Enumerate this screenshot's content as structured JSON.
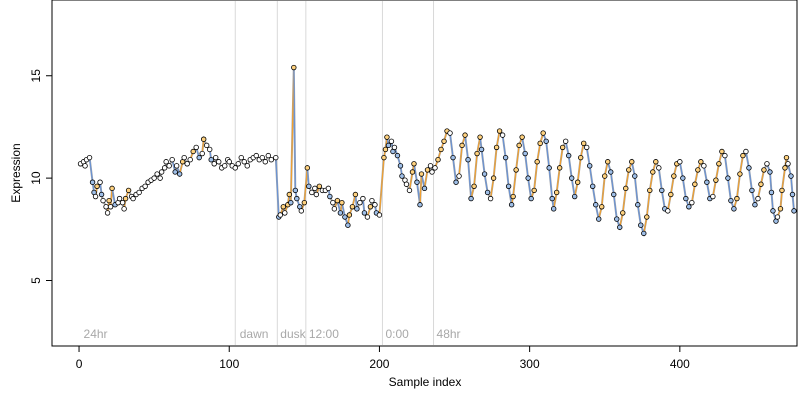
{
  "chart_data": {
    "type": "scatter",
    "xlabel": "Sample index",
    "ylabel": "Expression",
    "xlim": [
      -18,
      478
    ],
    "ylim": [
      1.8,
      18.7
    ],
    "x_ticks": [
      0,
      100,
      200,
      300,
      400
    ],
    "y_ticks": [
      5,
      10,
      15
    ],
    "grid": false,
    "phase_boundaries": [
      104,
      132,
      151,
      202,
      236
    ],
    "phase_labels": [
      {
        "text": "24hr",
        "x": 3
      },
      {
        "text": "dawn",
        "x": 107
      },
      {
        "text": "dusk",
        "x": 134
      },
      {
        "text": "12:00",
        "x": 153
      },
      {
        "text": "0:00",
        "x": 204
      },
      {
        "text": "48hr",
        "x": 238
      }
    ],
    "series": [
      {
        "name": "",
        "values": [
          [
            1,
            10.7
          ],
          [
            3,
            10.8
          ],
          [
            4,
            10.6
          ],
          [
            5,
            10.9
          ],
          [
            7,
            11.0
          ],
          [
            9,
            9.8
          ],
          [
            10,
            9.3
          ],
          [
            11,
            9.1
          ],
          [
            12,
            9.6
          ],
          [
            14,
            9.8
          ],
          [
            15,
            9.2
          ],
          [
            16,
            8.9
          ],
          [
            18,
            8.6
          ],
          [
            19,
            8.3
          ],
          [
            20,
            8.9
          ],
          [
            21,
            8.6
          ],
          [
            22,
            9.5
          ],
          [
            24,
            8.7
          ],
          [
            26,
            8.8
          ],
          [
            27,
            9.0
          ],
          [
            29,
            8.8
          ],
          [
            30,
            8.5
          ],
          [
            31,
            9.0
          ],
          [
            33,
            9.4
          ],
          [
            35,
            9.1
          ],
          [
            36,
            9.0
          ],
          [
            38,
            9.2
          ],
          [
            40,
            9.3
          ],
          [
            42,
            9.5
          ],
          [
            44,
            9.6
          ],
          [
            46,
            9.8
          ],
          [
            48,
            9.9
          ],
          [
            50,
            10.0
          ],
          [
            52,
            10.2
          ],
          [
            54,
            10.0
          ],
          [
            55,
            10.3
          ],
          [
            57,
            10.5
          ],
          [
            58,
            10.8
          ],
          [
            60,
            10.6
          ],
          [
            62,
            10.9
          ],
          [
            64,
            10.3
          ],
          [
            65,
            10.6
          ],
          [
            67,
            10.2
          ],
          [
            69,
            10.8
          ],
          [
            70,
            11.0
          ],
          [
            72,
            10.7
          ],
          [
            74,
            10.9
          ],
          [
            76,
            11.3
          ],
          [
            78,
            11.5
          ],
          [
            80,
            11.0
          ],
          [
            82,
            11.2
          ],
          [
            83,
            11.9
          ],
          [
            85,
            11.6
          ],
          [
            87,
            11.4
          ],
          [
            88,
            10.9
          ],
          [
            90,
            10.7
          ],
          [
            91,
            11.0
          ],
          [
            93,
            10.8
          ],
          [
            95,
            10.5
          ],
          [
            97,
            10.6
          ],
          [
            99,
            10.9
          ],
          [
            100,
            10.8
          ],
          [
            102,
            10.6
          ],
          [
            104,
            10.5
          ],
          [
            106,
            10.7
          ],
          [
            108,
            11.0
          ],
          [
            110,
            10.8
          ],
          [
            112,
            10.6
          ],
          [
            114,
            10.9
          ],
          [
            116,
            11.0
          ],
          [
            118,
            11.1
          ],
          [
            120,
            10.9
          ],
          [
            122,
            11.0
          ],
          [
            124,
            10.8
          ],
          [
            126,
            11.1
          ],
          [
            128,
            10.9
          ],
          [
            131,
            11.0
          ],
          [
            133,
            8.1
          ],
          [
            134,
            8.2
          ],
          [
            136,
            8.6
          ],
          [
            137,
            8.3
          ],
          [
            139,
            8.7
          ],
          [
            140,
            9.2
          ],
          [
            141,
            8.8
          ],
          [
            143,
            15.4
          ],
          [
            144,
            9.4
          ],
          [
            145,
            9.0
          ],
          [
            147,
            8.6
          ],
          [
            148,
            8.4
          ],
          [
            150,
            8.8
          ],
          [
            152,
            10.5
          ],
          [
            153,
            9.6
          ],
          [
            155,
            9.3
          ],
          [
            157,
            9.5
          ],
          [
            158,
            9.2
          ],
          [
            160,
            9.6
          ],
          [
            162,
            9.4
          ],
          [
            164,
            9.4
          ],
          [
            166,
            9.5
          ],
          [
            167,
            9.1
          ],
          [
            169,
            8.8
          ],
          [
            170,
            8.5
          ],
          [
            172,
            8.9
          ],
          [
            174,
            8.3
          ],
          [
            175,
            8.8
          ],
          [
            177,
            8.1
          ],
          [
            179,
            7.7
          ],
          [
            180,
            8.2
          ],
          [
            182,
            8.6
          ],
          [
            184,
            9.2
          ],
          [
            185,
            8.5
          ],
          [
            187,
            8.8
          ],
          [
            189,
            9.0
          ],
          [
            190,
            8.3
          ],
          [
            192,
            8.1
          ],
          [
            194,
            8.6
          ],
          [
            195,
            8.9
          ],
          [
            197,
            8.7
          ],
          [
            198,
            8.3
          ],
          [
            200,
            8.2
          ],
          [
            203,
            11.0
          ],
          [
            204,
            11.4
          ],
          [
            205,
            12.0
          ],
          [
            206,
            11.6
          ],
          [
            208,
            11.8
          ],
          [
            209,
            11.3
          ],
          [
            210,
            11.5
          ],
          [
            212,
            11.1
          ],
          [
            214,
            10.6
          ],
          [
            215,
            10.1
          ],
          [
            217,
            9.9
          ],
          [
            218,
            9.7
          ],
          [
            220,
            9.4
          ],
          [
            222,
            10.3
          ],
          [
            223,
            10.7
          ],
          [
            225,
            9.8
          ],
          [
            227,
            8.7
          ],
          [
            228,
            10.2
          ],
          [
            230,
            9.5
          ],
          [
            232,
            10.4
          ],
          [
            234,
            10.6
          ],
          [
            235,
            10.3
          ],
          [
            237,
            10.5
          ],
          [
            239,
            10.9
          ],
          [
            241,
            11.4
          ],
          [
            243,
            11.8
          ],
          [
            245,
            12.3
          ],
          [
            247,
            12.2
          ],
          [
            249,
            11.0
          ],
          [
            251,
            9.8
          ],
          [
            253,
            10.1
          ],
          [
            255,
            11.6
          ],
          [
            257,
            12.1
          ],
          [
            259,
            10.9
          ],
          [
            261,
            9.0
          ],
          [
            263,
            9.6
          ],
          [
            265,
            11.2
          ],
          [
            267,
            12.0
          ],
          [
            268,
            11.4
          ],
          [
            270,
            10.2
          ],
          [
            272,
            9.3
          ],
          [
            274,
            9.0
          ],
          [
            276,
            10.0
          ],
          [
            278,
            11.5
          ],
          [
            280,
            12.3
          ],
          [
            282,
            12.1
          ],
          [
            284,
            11.0
          ],
          [
            286,
            9.6
          ],
          [
            288,
            8.7
          ],
          [
            289,
            9.1
          ],
          [
            291,
            10.4
          ],
          [
            293,
            11.6
          ],
          [
            295,
            12.0
          ],
          [
            297,
            11.2
          ],
          [
            299,
            10.0
          ],
          [
            301,
            9.0
          ],
          [
            303,
            9.4
          ],
          [
            305,
            10.8
          ],
          [
            307,
            11.7
          ],
          [
            309,
            12.2
          ],
          [
            311,
            11.8
          ],
          [
            313,
            10.5
          ],
          [
            315,
            9.0
          ],
          [
            316,
            8.5
          ],
          [
            318,
            9.3
          ],
          [
            320,
            10.5
          ],
          [
            322,
            11.5
          ],
          [
            324,
            11.8
          ],
          [
            326,
            11.1
          ],
          [
            328,
            10.0
          ],
          [
            330,
            9.1
          ],
          [
            332,
            9.8
          ],
          [
            334,
            11.0
          ],
          [
            336,
            11.7
          ],
          [
            338,
            11.5
          ],
          [
            340,
            10.6
          ],
          [
            342,
            9.6
          ],
          [
            344,
            8.7
          ],
          [
            346,
            8.0
          ],
          [
            348,
            8.6
          ],
          [
            350,
            10.1
          ],
          [
            352,
            10.8
          ],
          [
            354,
            10.3
          ],
          [
            356,
            9.2
          ],
          [
            358,
            8.0
          ],
          [
            360,
            7.6
          ],
          [
            362,
            8.3
          ],
          [
            364,
            9.5
          ],
          [
            366,
            10.4
          ],
          [
            368,
            10.8
          ],
          [
            370,
            10.1
          ],
          [
            372,
            8.7
          ],
          [
            374,
            7.7
          ],
          [
            376,
            7.3
          ],
          [
            378,
            8.1
          ],
          [
            380,
            9.4
          ],
          [
            382,
            10.3
          ],
          [
            384,
            10.8
          ],
          [
            386,
            10.5
          ],
          [
            388,
            9.4
          ],
          [
            390,
            8.5
          ],
          [
            392,
            8.4
          ],
          [
            394,
            9.2
          ],
          [
            396,
            10.1
          ],
          [
            398,
            10.7
          ],
          [
            400,
            10.8
          ],
          [
            402,
            10.0
          ],
          [
            404,
            9.0
          ],
          [
            406,
            8.6
          ],
          [
            408,
            8.8
          ],
          [
            410,
            9.7
          ],
          [
            412,
            10.4
          ],
          [
            414,
            10.8
          ],
          [
            416,
            10.6
          ],
          [
            418,
            9.8
          ],
          [
            420,
            9.0
          ],
          [
            422,
            9.1
          ],
          [
            424,
            9.9
          ],
          [
            426,
            10.7
          ],
          [
            428,
            11.3
          ],
          [
            430,
            11.1
          ],
          [
            432,
            10.0
          ],
          [
            434,
            8.9
          ],
          [
            436,
            8.5
          ],
          [
            438,
            9.0
          ],
          [
            440,
            10.2
          ],
          [
            442,
            11.1
          ],
          [
            444,
            11.3
          ],
          [
            446,
            10.5
          ],
          [
            448,
            9.4
          ],
          [
            450,
            8.7
          ],
          [
            452,
            9.0
          ],
          [
            454,
            9.7
          ],
          [
            456,
            10.4
          ],
          [
            458,
            10.7
          ],
          [
            460,
            10.3
          ],
          [
            461,
            9.3
          ],
          [
            462,
            8.4
          ],
          [
            464,
            7.9
          ],
          [
            465,
            8.1
          ],
          [
            467,
            8.5
          ],
          [
            468,
            9.4
          ],
          [
            470,
            10.5
          ],
          [
            471,
            11.0
          ],
          [
            472,
            10.7
          ],
          [
            474,
            10.1
          ],
          [
            475,
            9.2
          ],
          [
            476,
            8.4
          ]
        ]
      }
    ],
    "colors": {
      "point_fill_light": "#ffd27f",
      "point_fill_blue": "#9fbfe8",
      "point_fill_dark": "#ffffff",
      "point_stroke": "#000000",
      "trend_line": "#a6a6a6",
      "segment_up": "#f0a030",
      "segment_down": "#6a93d4",
      "phase_line": "#d9d9d9",
      "phase_text": "#a8a8a8"
    }
  }
}
